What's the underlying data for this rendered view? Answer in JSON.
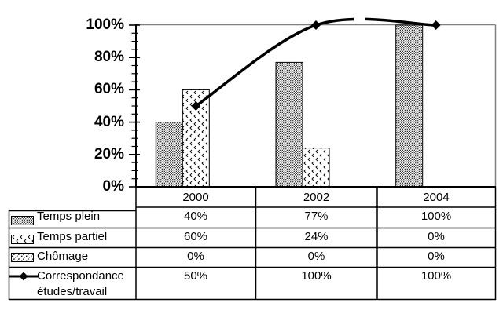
{
  "chart_data": {
    "type": "bar+line combo",
    "title": "",
    "categories": [
      "2000",
      "2002",
      "2004"
    ],
    "bar_series": [
      {
        "name": "Temps plein",
        "pattern": "dots",
        "values": [
          40,
          77,
          100
        ]
      },
      {
        "name": "Temps partiel",
        "pattern": "ticks",
        "values": [
          60,
          24,
          0
        ]
      },
      {
        "name": "Chômage",
        "pattern": "speckle",
        "values": [
          0,
          0,
          0
        ]
      }
    ],
    "line_series": {
      "name": "Correspondance études/travail",
      "values": [
        50,
        100,
        100
      ],
      "marker": "diamond",
      "smoothed": true
    },
    "y_axis": {
      "min": 0,
      "max": 100,
      "major_step": 20,
      "minor_step": 5,
      "tick_labels": [
        "0%",
        "20%",
        "40%",
        "60%",
        "80%",
        "100%"
      ]
    },
    "layout_hints": {
      "gridlines": "top 100% line only",
      "legend_position": "in data table at left",
      "plot_border_color": "#808080",
      "ink_color": "#000000",
      "background": "#ffffff"
    }
  },
  "table": {
    "column_headers": [
      "2000",
      "2002",
      "2004"
    ],
    "rows": [
      {
        "label": "Temps plein",
        "swatch": "pattern-dots",
        "values": [
          "40%",
          "77%",
          "100%"
        ]
      },
      {
        "label": "Temps partiel",
        "swatch": "pattern-ticks",
        "values": [
          "60%",
          "24%",
          "0%"
        ]
      },
      {
        "label": "Chômage",
        "swatch": "pattern-speckle",
        "values": [
          "0%",
          "0%",
          "0%"
        ]
      },
      {
        "label": "Correspondance études/travail",
        "swatch": "line-diamond",
        "values": [
          "50%",
          "100%",
          "100%"
        ]
      }
    ]
  }
}
